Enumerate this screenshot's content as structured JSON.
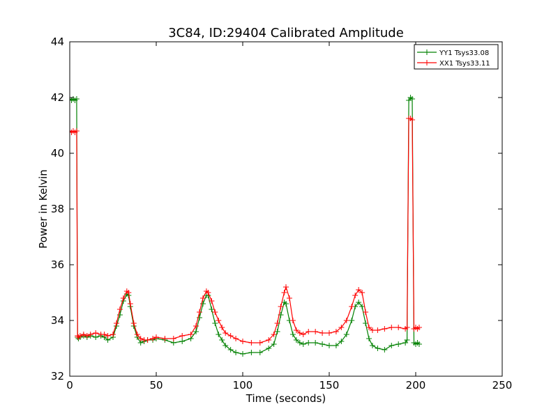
{
  "chart_data": {
    "type": "line",
    "title": "3C84, ID:29404 Calibrated Amplitude",
    "xlabel": "Time (seconds)",
    "ylabel": "Power in Kelvin",
    "xlim": [
      0,
      250
    ],
    "ylim": [
      32,
      44
    ],
    "xticks": [
      0,
      50,
      100,
      150,
      200,
      250
    ],
    "yticks": [
      32,
      34,
      36,
      38,
      40,
      42,
      44
    ],
    "grid": false,
    "legend_position": "top-right",
    "series": [
      {
        "name": "YY1 Tsys33.08",
        "color": "#008000",
        "marker": "+",
        "x": [
          0,
          1,
          2,
          3,
          4,
          4.5,
          5,
          6,
          8,
          10,
          12,
          15,
          18,
          20,
          22,
          25,
          27,
          29,
          31,
          33,
          34,
          35,
          37,
          39,
          41,
          43,
          45,
          48,
          50,
          55,
          60,
          65,
          70,
          73,
          75,
          77,
          79,
          80,
          82,
          84,
          86,
          88,
          90,
          93,
          96,
          100,
          105,
          110,
          115,
          118,
          120,
          122,
          124,
          125,
          127,
          129,
          131,
          133,
          135,
          138,
          142,
          146,
          150,
          154,
          157,
          160,
          163,
          165,
          167,
          169,
          171,
          173,
          175,
          178,
          182,
          186,
          190,
          194,
          195,
          196,
          197,
          198,
          199,
          200,
          201,
          202
        ],
        "y": [
          41.95,
          41.9,
          41.95,
          41.9,
          41.95,
          33.4,
          33.35,
          33.4,
          33.45,
          33.4,
          33.45,
          33.4,
          33.45,
          33.4,
          33.3,
          33.4,
          33.8,
          34.2,
          34.7,
          34.95,
          34.9,
          34.5,
          33.8,
          33.4,
          33.2,
          33.25,
          33.3,
          33.3,
          33.35,
          33.3,
          33.2,
          33.25,
          33.35,
          33.6,
          34.1,
          34.6,
          34.9,
          34.9,
          34.4,
          33.9,
          33.5,
          33.3,
          33.1,
          32.95,
          32.85,
          32.8,
          32.85,
          32.85,
          33.0,
          33.15,
          33.6,
          34.2,
          34.65,
          34.6,
          34.0,
          33.5,
          33.3,
          33.2,
          33.15,
          33.2,
          33.2,
          33.15,
          33.1,
          33.1,
          33.25,
          33.5,
          34.0,
          34.5,
          34.65,
          34.5,
          33.9,
          33.35,
          33.1,
          33.0,
          32.95,
          33.1,
          33.15,
          33.2,
          33.3,
          41.9,
          42.0,
          41.95,
          33.2,
          33.15,
          33.2,
          33.15
        ]
      },
      {
        "name": "XX1 Tsys33.11",
        "color": "#ff0000",
        "marker": "+",
        "x": [
          0,
          1,
          2,
          3,
          4,
          4.5,
          5,
          6,
          8,
          10,
          12,
          15,
          18,
          20,
          22,
          25,
          27,
          29,
          31,
          33,
          34,
          35,
          37,
          39,
          41,
          43,
          45,
          48,
          50,
          55,
          60,
          65,
          70,
          73,
          75,
          77,
          79,
          80,
          82,
          84,
          86,
          88,
          90,
          93,
          96,
          100,
          105,
          110,
          115,
          118,
          120,
          122,
          124,
          125,
          127,
          129,
          131,
          133,
          135,
          138,
          142,
          146,
          150,
          154,
          157,
          160,
          163,
          165,
          167,
          169,
          171,
          173,
          175,
          178,
          182,
          186,
          190,
          194,
          195,
          196,
          197,
          198,
          199,
          200,
          201,
          202
        ],
        "y": [
          40.8,
          40.75,
          40.8,
          40.75,
          40.8,
          33.45,
          33.4,
          33.45,
          33.5,
          33.45,
          33.5,
          33.55,
          33.5,
          33.5,
          33.45,
          33.5,
          33.9,
          34.4,
          34.8,
          35.05,
          35.0,
          34.6,
          33.9,
          33.5,
          33.35,
          33.3,
          33.3,
          33.35,
          33.4,
          33.35,
          33.35,
          33.45,
          33.5,
          33.8,
          34.3,
          34.8,
          35.05,
          35.0,
          34.7,
          34.3,
          34.0,
          33.75,
          33.55,
          33.45,
          33.35,
          33.25,
          33.2,
          33.2,
          33.3,
          33.5,
          33.9,
          34.5,
          35.0,
          35.2,
          34.8,
          34.0,
          33.65,
          33.55,
          33.5,
          33.6,
          33.6,
          33.55,
          33.55,
          33.6,
          33.75,
          34.0,
          34.5,
          34.9,
          35.1,
          35.0,
          34.3,
          33.75,
          33.65,
          33.65,
          33.7,
          33.75,
          33.75,
          33.7,
          33.75,
          41.25,
          41.25,
          41.2,
          33.7,
          33.75,
          33.7,
          33.75
        ]
      }
    ]
  }
}
